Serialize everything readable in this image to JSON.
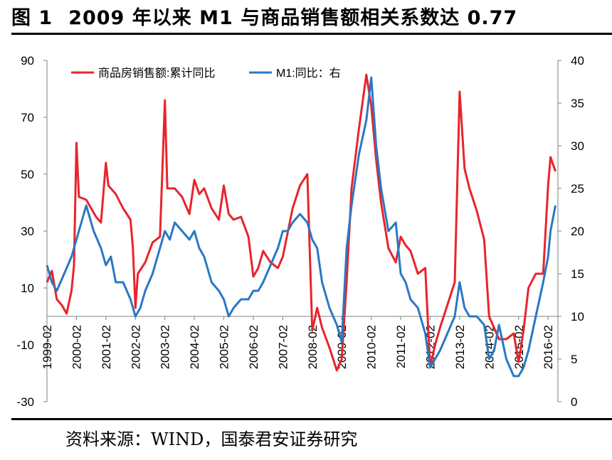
{
  "figure": {
    "number": "图 1",
    "title": "2009 年以来 M1 与商品销售额相关系数达 0.77"
  },
  "source": "资料来源：WIND，国泰君安证券研究",
  "colors": {
    "red": "#e8242c",
    "blue": "#2a78c3",
    "axis": "#808080"
  },
  "chart_data": {
    "type": "line",
    "title": "",
    "xlabel": "",
    "ylabel": "",
    "x_tick_labels": [
      "1999-02",
      "2000-02",
      "2001-02",
      "2002-02",
      "2003-02",
      "2004-02",
      "2005-02",
      "2006-02",
      "2007-02",
      "2008-02",
      "2009-02",
      "2010-02",
      "2011-02",
      "2012-02",
      "2013-02",
      "2014-02",
      "2015-02",
      "2016-02"
    ],
    "xlim": [
      "1999-02",
      "2016-06"
    ],
    "y_left": {
      "lim": [
        -30,
        90
      ],
      "ticks": [
        -30,
        -10,
        10,
        30,
        50,
        70,
        90
      ]
    },
    "y_right": {
      "lim": [
        0,
        40
      ],
      "ticks": [
        0,
        5,
        10,
        15,
        20,
        25,
        30,
        35,
        40
      ]
    },
    "legend_position": "top-left",
    "series": [
      {
        "name": "商品房销售额:累计同比",
        "axis": "left",
        "color": "#e8242c",
        "points": [
          [
            "1999-02",
            12
          ],
          [
            "1999-04",
            16
          ],
          [
            "1999-06",
            6
          ],
          [
            "1999-08",
            4
          ],
          [
            "1999-10",
            1
          ],
          [
            "1999-12",
            9
          ],
          [
            "2000-01",
            18
          ],
          [
            "2000-02",
            61
          ],
          [
            "2000-03",
            42
          ],
          [
            "2000-06",
            41
          ],
          [
            "2000-08",
            38
          ],
          [
            "2000-10",
            35
          ],
          [
            "2000-12",
            33
          ],
          [
            "2001-02",
            54
          ],
          [
            "2001-03",
            46
          ],
          [
            "2001-06",
            43
          ],
          [
            "2001-09",
            38
          ],
          [
            "2001-12",
            34
          ],
          [
            "2002-01",
            24
          ],
          [
            "2002-02",
            3
          ],
          [
            "2002-03",
            15
          ],
          [
            "2002-06",
            19
          ],
          [
            "2002-09",
            26
          ],
          [
            "2002-12",
            28
          ],
          [
            "2003-02",
            76
          ],
          [
            "2003-03",
            45
          ],
          [
            "2003-06",
            45
          ],
          [
            "2003-09",
            42
          ],
          [
            "2003-12",
            36
          ],
          [
            "2004-02",
            48
          ],
          [
            "2004-04",
            43
          ],
          [
            "2004-06",
            45
          ],
          [
            "2004-09",
            38
          ],
          [
            "2004-12",
            34
          ],
          [
            "2005-02",
            46
          ],
          [
            "2005-04",
            36
          ],
          [
            "2005-06",
            34
          ],
          [
            "2005-09",
            35
          ],
          [
            "2005-12",
            28
          ],
          [
            "2006-02",
            14
          ],
          [
            "2006-04",
            17
          ],
          [
            "2006-06",
            23
          ],
          [
            "2006-09",
            19
          ],
          [
            "2006-12",
            17
          ],
          [
            "2007-02",
            21
          ],
          [
            "2007-06",
            38
          ],
          [
            "2007-09",
            46
          ],
          [
            "2007-12",
            50
          ],
          [
            "2008-02",
            -5
          ],
          [
            "2008-04",
            3
          ],
          [
            "2008-06",
            -4
          ],
          [
            "2008-09",
            -11
          ],
          [
            "2008-12",
            -19
          ],
          [
            "2009-02",
            -15
          ],
          [
            "2009-04",
            12
          ],
          [
            "2009-06",
            45
          ],
          [
            "2009-09",
            66
          ],
          [
            "2009-12",
            85
          ],
          [
            "2010-02",
            74
          ],
          [
            "2010-04",
            55
          ],
          [
            "2010-06",
            40
          ],
          [
            "2010-09",
            24
          ],
          [
            "2010-12",
            19
          ],
          [
            "2011-02",
            28
          ],
          [
            "2011-04",
            25
          ],
          [
            "2011-06",
            23
          ],
          [
            "2011-09",
            15
          ],
          [
            "2011-12",
            17
          ],
          [
            "2012-02",
            -18
          ],
          [
            "2012-04",
            -10
          ],
          [
            "2012-06",
            -4
          ],
          [
            "2012-09",
            4
          ],
          [
            "2012-12",
            12
          ],
          [
            "2013-02",
            79
          ],
          [
            "2013-04",
            52
          ],
          [
            "2013-06",
            45
          ],
          [
            "2013-09",
            37
          ],
          [
            "2013-12",
            27
          ],
          [
            "2014-02",
            0
          ],
          [
            "2014-04",
            -4
          ],
          [
            "2014-06",
            -8
          ],
          [
            "2014-09",
            -8
          ],
          [
            "2014-12",
            -6
          ],
          [
            "2015-02",
            -16
          ],
          [
            "2015-04",
            -5
          ],
          [
            "2015-06",
            10
          ],
          [
            "2015-09",
            15
          ],
          [
            "2015-12",
            15
          ],
          [
            "2016-02",
            46
          ],
          [
            "2016-03",
            56
          ],
          [
            "2016-05",
            51
          ]
        ]
      },
      {
        "name": "M1:同比：右",
        "axis": "right",
        "color": "#2a78c3",
        "points": [
          [
            "1999-02",
            16
          ],
          [
            "1999-04",
            14
          ],
          [
            "1999-06",
            13
          ],
          [
            "1999-09",
            15
          ],
          [
            "1999-12",
            17
          ],
          [
            "2000-02",
            19
          ],
          [
            "2000-04",
            21
          ],
          [
            "2000-06",
            23
          ],
          [
            "2000-09",
            20
          ],
          [
            "2000-12",
            18
          ],
          [
            "2001-02",
            16
          ],
          [
            "2001-04",
            17
          ],
          [
            "2001-06",
            14
          ],
          [
            "2001-09",
            14
          ],
          [
            "2001-12",
            12
          ],
          [
            "2002-02",
            10
          ],
          [
            "2002-04",
            11
          ],
          [
            "2002-06",
            13
          ],
          [
            "2002-09",
            15
          ],
          [
            "2002-12",
            18
          ],
          [
            "2003-02",
            20
          ],
          [
            "2003-04",
            19
          ],
          [
            "2003-06",
            21
          ],
          [
            "2003-09",
            20
          ],
          [
            "2003-12",
            19
          ],
          [
            "2004-02",
            20
          ],
          [
            "2004-04",
            18
          ],
          [
            "2004-06",
            17
          ],
          [
            "2004-09",
            14
          ],
          [
            "2004-12",
            13
          ],
          [
            "2005-02",
            12
          ],
          [
            "2005-04",
            10
          ],
          [
            "2005-06",
            11
          ],
          [
            "2005-09",
            12
          ],
          [
            "2005-12",
            12
          ],
          [
            "2006-02",
            13
          ],
          [
            "2006-04",
            13
          ],
          [
            "2006-06",
            14
          ],
          [
            "2006-09",
            16
          ],
          [
            "2006-12",
            18
          ],
          [
            "2007-02",
            20
          ],
          [
            "2007-04",
            20
          ],
          [
            "2007-06",
            21
          ],
          [
            "2007-09",
            22
          ],
          [
            "2007-12",
            21
          ],
          [
            "2008-02",
            19
          ],
          [
            "2008-04",
            18
          ],
          [
            "2008-06",
            14
          ],
          [
            "2008-09",
            11
          ],
          [
            "2008-12",
            9
          ],
          [
            "2009-02",
            7
          ],
          [
            "2009-04",
            18
          ],
          [
            "2009-06",
            23
          ],
          [
            "2009-09",
            29
          ],
          [
            "2009-12",
            33
          ],
          [
            "2010-02",
            38
          ],
          [
            "2010-04",
            30
          ],
          [
            "2010-06",
            25
          ],
          [
            "2010-09",
            20
          ],
          [
            "2010-12",
            21
          ],
          [
            "2011-02",
            15
          ],
          [
            "2011-04",
            14
          ],
          [
            "2011-06",
            12
          ],
          [
            "2011-09",
            11
          ],
          [
            "2011-12",
            8
          ],
          [
            "2012-02",
            4
          ],
          [
            "2012-04",
            5
          ],
          [
            "2012-06",
            6
          ],
          [
            "2012-09",
            8
          ],
          [
            "2012-12",
            10
          ],
          [
            "2013-02",
            14
          ],
          [
            "2013-04",
            11
          ],
          [
            "2013-06",
            10
          ],
          [
            "2013-09",
            10
          ],
          [
            "2013-12",
            9
          ],
          [
            "2014-02",
            5
          ],
          [
            "2014-04",
            6
          ],
          [
            "2014-06",
            9
          ],
          [
            "2014-09",
            5
          ],
          [
            "2014-12",
            3
          ],
          [
            "2015-02",
            3
          ],
          [
            "2015-04",
            4
          ],
          [
            "2015-06",
            6
          ],
          [
            "2015-09",
            10
          ],
          [
            "2015-12",
            14
          ],
          [
            "2016-02",
            17
          ],
          [
            "2016-03",
            20
          ],
          [
            "2016-05",
            23
          ]
        ]
      }
    ]
  }
}
